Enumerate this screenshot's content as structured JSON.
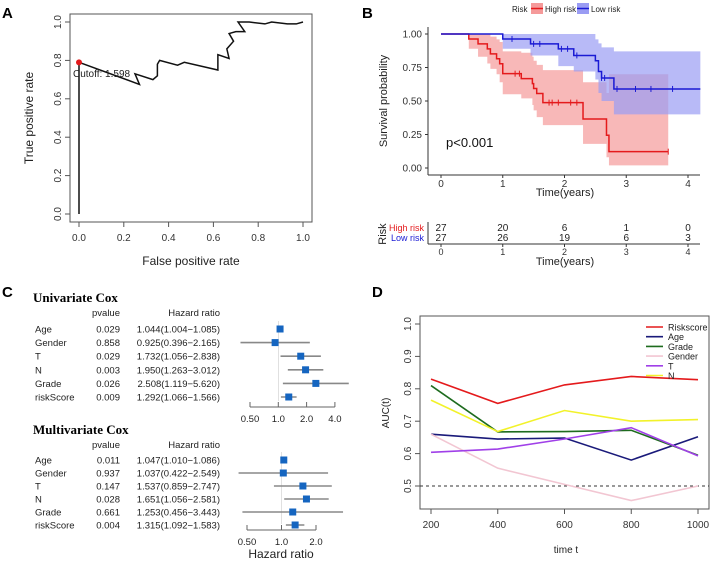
{
  "panels": {
    "a": "A",
    "b": "B",
    "c": "C",
    "d": "D"
  },
  "chart_data": [
    {
      "type": "line",
      "panel": "A",
      "xlabel": "False positive rate",
      "ylabel": "True positive rate",
      "xlim": [
        0,
        1
      ],
      "ylim": [
        0,
        1
      ],
      "xticks": [
        "0.0",
        "0.2",
        "0.4",
        "0.6",
        "0.8",
        "1.0"
      ],
      "yticks": [
        "0.0",
        "0.2",
        "0.4",
        "0.6",
        "0.8",
        "1.0"
      ],
      "cutoff_label": "Cutoff:  1.598",
      "cutoff_point": [
        0,
        0.79
      ],
      "cutoff_color": "#e31a1c",
      "points": [
        [
          0,
          0
        ],
        [
          0,
          0.79
        ],
        [
          0.27,
          0.675
        ],
        [
          0.25,
          0.73
        ],
        [
          0.33,
          0.7
        ],
        [
          0.35,
          0.72
        ],
        [
          0.35,
          0.78
        ],
        [
          0.36,
          0.8
        ],
        [
          0.44,
          0.775
        ],
        [
          0.47,
          0.79
        ],
        [
          0.62,
          0.75
        ],
        [
          0.62,
          0.83
        ],
        [
          0.67,
          0.81
        ],
        [
          0.66,
          0.86
        ],
        [
          0.69,
          0.9
        ],
        [
          0.67,
          0.94
        ],
        [
          0.7,
          0.95
        ],
        [
          0.74,
          0.95
        ],
        [
          0.71,
          1.0
        ],
        [
          0.76,
          1.0
        ],
        [
          0.83,
          0.99
        ],
        [
          0.86,
          1.0
        ],
        [
          0.93,
          0.99
        ],
        [
          0.97,
          0.99
        ],
        [
          1.0,
          1.0
        ]
      ]
    },
    {
      "type": "line",
      "panel": "B",
      "legend_title": "Risk",
      "xlabel": "Time(years)",
      "ylabel": "Survival probability",
      "xlim": [
        0,
        4.2
      ],
      "ylim": [
        0,
        1
      ],
      "xticks": [
        "0",
        "1",
        "2",
        "3",
        "4"
      ],
      "yticks": [
        "0.00",
        "0.25",
        "0.50",
        "0.75",
        "1.00"
      ],
      "annotation": "p<0.001",
      "series": [
        {
          "name": "High risk",
          "color": "#e41a1c",
          "band": "#f59a9a",
          "end": 3.68,
          "steps": [
            [
              0,
              1,
              1,
              1
            ],
            [
              0.45,
              0.963,
              0.89,
              1
            ],
            [
              0.6,
              0.926,
              0.83,
              1
            ],
            [
              0.75,
              0.889,
              0.78,
              1
            ],
            [
              0.8,
              0.852,
              0.74,
              0.98
            ],
            [
              0.9,
              0.815,
              0.7,
              0.96
            ],
            [
              0.95,
              0.778,
              0.64,
              0.94
            ],
            [
              1.0,
              0.704,
              0.55,
              0.87
            ],
            [
              1.3,
              0.667,
              0.52,
              0.86
            ],
            [
              1.48,
              0.63,
              0.47,
              0.83
            ],
            [
              1.5,
              0.593,
              0.43,
              0.8
            ],
            [
              1.55,
              0.556,
              0.38,
              0.77
            ],
            [
              1.65,
              0.488,
              0.32,
              0.73
            ],
            [
              2.3,
              0.366,
              0.18,
              0.64
            ],
            [
              2.68,
              0.244,
              0.08,
              0.56
            ],
            [
              2.72,
              0.122,
              0.02,
              0.7
            ]
          ],
          "censor": [
            1.2,
            1.27,
            1.75,
            1.8,
            1.9,
            2.1,
            2.2,
            3.68
          ]
        },
        {
          "name": "Low risk",
          "color": "#1a1ad4",
          "band": "#9a9cf3",
          "end": 4.2,
          "steps": [
            [
              0,
              1,
              1,
              1
            ],
            [
              1.0,
              0.963,
              0.89,
              1
            ],
            [
              1.45,
              0.926,
              0.84,
              1
            ],
            [
              1.9,
              0.889,
              0.76,
              1
            ],
            [
              2.15,
              0.84,
              0.72,
              1
            ],
            [
              2.5,
              0.8,
              0.66,
              0.96
            ],
            [
              2.55,
              0.72,
              0.56,
              0.93
            ],
            [
              2.6,
              0.672,
              0.5,
              0.9
            ],
            [
              2.8,
              0.59,
              0.4,
              0.87
            ]
          ],
          "censor": [
            1.15,
            1.5,
            1.6,
            1.95,
            2.05,
            2.2,
            2.6,
            2.65,
            2.85,
            3.15,
            3.4,
            3.75
          ]
        }
      ],
      "risk_table": {
        "title": "Risk",
        "xlabel": "Time(years)",
        "rows": [
          {
            "name": "High risk",
            "values": [
              "27",
              "20",
              "6",
              "1",
              "0"
            ]
          },
          {
            "name": "Low risk",
            "values": [
              "27",
              "26",
              "19",
              "6",
              "3"
            ]
          }
        ]
      }
    },
    {
      "type": "table",
      "panel": "C",
      "col_pvalue": "pvalue",
      "col_hr": "Hazard ratio",
      "xlabel": "Hazard ratio",
      "marker_color": "#1565c0",
      "tables": [
        {
          "title": "Univariate Cox",
          "xticks": [
            "0.50",
            "1.0",
            "2.0",
            "4.0"
          ],
          "tickvals": [
            0.5,
            1,
            2,
            4
          ],
          "rows": [
            [
              "Age",
              "0.029",
              "1.044(1.004−1.085)",
              1.044,
              1.004,
              1.085
            ],
            [
              "Gender",
              "0.858",
              "0.925(0.396−2.165)",
              0.925,
              0.396,
              2.165
            ],
            [
              "T",
              "0.029",
              "1.732(1.056−2.838)",
              1.732,
              1.056,
              2.838
            ],
            [
              "N",
              "0.003",
              "1.950(1.263−3.012)",
              1.95,
              1.263,
              3.012
            ],
            [
              "Grade",
              "0.026",
              "2.508(1.119−5.620)",
              2.508,
              1.119,
              5.62
            ],
            [
              "riskScore",
              "0.009",
              "1.292(1.066−1.566)",
              1.292,
              1.066,
              1.566
            ]
          ]
        },
        {
          "title": "Multivariate Cox",
          "xticks": [
            "0.50",
            "1.0",
            "2.0"
          ],
          "tickvals": [
            0.5,
            1,
            2
          ],
          "rows": [
            [
              "Age",
              "0.011",
              "1.047(1.010−1.086)",
              1.047,
              1.01,
              1.086
            ],
            [
              "Gender",
              "0.937",
              "1.037(0.422−2.549)",
              1.037,
              0.422,
              2.549
            ],
            [
              "T",
              "0.147",
              "1.537(0.859−2.747)",
              1.537,
              0.859,
              2.747
            ],
            [
              "N",
              "0.028",
              "1.651(1.056−2.581)",
              1.651,
              1.056,
              2.581
            ],
            [
              "Grade",
              "0.661",
              "1.253(0.456−3.443)",
              1.253,
              0.456,
              3.443
            ],
            [
              "riskScore",
              "0.004",
              "1.315(1.092−1.583)",
              1.315,
              1.092,
              1.583
            ]
          ]
        }
      ]
    },
    {
      "type": "line",
      "panel": "D",
      "xlabel": "time t",
      "ylabel": "AUC(t)",
      "x": [
        200,
        400,
        600,
        800,
        1000
      ],
      "xlim": [
        200,
        1000
      ],
      "ylim": [
        0.45,
        1.0
      ],
      "xticks": [
        "200",
        "400",
        "600",
        "800",
        "1000"
      ],
      "yticks": [
        "0.5",
        "0.6",
        "0.7",
        "0.8",
        "0.9",
        "1.0"
      ],
      "reference_line": 0.5,
      "legend": "top-right",
      "series": [
        {
          "name": "Riskscore",
          "color": "#e41a1c",
          "values": [
            0.83,
            0.755,
            0.812,
            0.838,
            0.828
          ]
        },
        {
          "name": "Age",
          "color": "#1a1a7a",
          "values": [
            0.66,
            0.645,
            0.648,
            0.58,
            0.652
          ]
        },
        {
          "name": "Grade",
          "color": "#1e6b1e",
          "values": [
            0.81,
            0.667,
            0.668,
            0.672,
            0.595
          ]
        },
        {
          "name": "Gender",
          "color": "#f2c6d2",
          "values": [
            0.66,
            0.555,
            0.505,
            0.455,
            0.5
          ]
        },
        {
          "name": "T",
          "color": "#a040e8",
          "values": [
            0.604,
            0.614,
            0.645,
            0.68,
            0.593
          ]
        },
        {
          "name": "N",
          "color": "#f2f22a",
          "values": [
            0.765,
            0.668,
            0.733,
            0.7,
            0.705
          ]
        }
      ]
    }
  ]
}
